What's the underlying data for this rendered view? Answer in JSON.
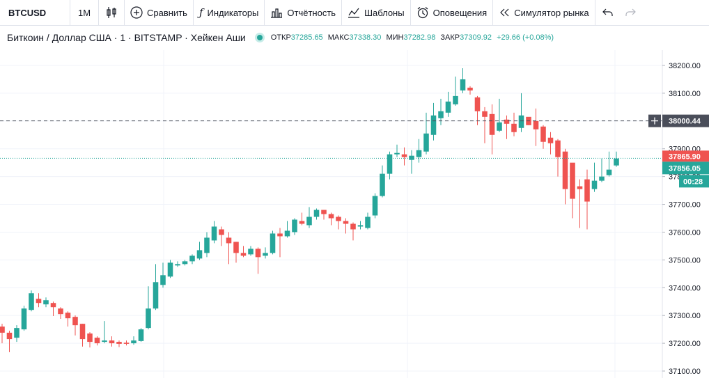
{
  "toolbar": {
    "symbol": "BTCUSD",
    "interval": "1M",
    "compare": "Сравнить",
    "indicators": "Индикаторы",
    "report": "Отчётность",
    "templates": "Шаблоны",
    "alerts": "Оповещения",
    "simulator": "Симулятор рынка"
  },
  "legend": {
    "title": "Биткоин / Доллар США · 1 · BITSTAMP · Хейкен Аши",
    "open_label": "ОТКР",
    "open": "37285.65",
    "high_label": "МАКС",
    "high": "37338.30",
    "low_label": "МИН",
    "low": "37282.98",
    "close_label": "ЗАКР",
    "close": "37309.92",
    "change": "+29.66 (+0.08%)"
  },
  "colors": {
    "up": "#26a69a",
    "down": "#ef5350",
    "crosshair_tag": "#4a4e5a"
  },
  "price_tags": {
    "crosshair": "38000.44",
    "last_red": "37865.90",
    "last_green": "37856.05",
    "countdown": "00:28"
  },
  "chart_data": {
    "type": "candlestick",
    "y_ticks": [
      "38200.00",
      "38100.00",
      "38000.00",
      "37900.00",
      "37800.00",
      "37700.00",
      "37600.00",
      "37500.00",
      "37400.00",
      "37300.00",
      "37200.00",
      "37100.00"
    ],
    "ylim": [
      37090,
      38220
    ],
    "crosshair_price": 38000.44,
    "last_price": 37865.9,
    "candles": [
      [
        37260,
        37238,
        37270,
        37200
      ],
      [
        37238,
        37215,
        37245,
        37168
      ],
      [
        37220,
        37255,
        37265,
        37205
      ],
      [
        37250,
        37325,
        37335,
        37245
      ],
      [
        37320,
        37380,
        37390,
        37315
      ],
      [
        37360,
        37345,
        37380,
        37330
      ],
      [
        37340,
        37355,
        37365,
        37330
      ],
      [
        37345,
        37330,
        37350,
        37298
      ],
      [
        37325,
        37305,
        37330,
        37288
      ],
      [
        37310,
        37290,
        37315,
        37260
      ],
      [
        37295,
        37265,
        37300,
        37228
      ],
      [
        37270,
        37215,
        37270,
        37188
      ],
      [
        37235,
        37205,
        37240,
        37185
      ],
      [
        37220,
        37200,
        37225,
        37192
      ],
      [
        37205,
        37210,
        37280,
        37200
      ],
      [
        37210,
        37200,
        37225,
        37188
      ],
      [
        37205,
        37198,
        37210,
        37186
      ],
      [
        37202,
        37198,
        37210,
        37192
      ],
      [
        37200,
        37210,
        37225,
        37195
      ],
      [
        37208,
        37250,
        37255,
        37205
      ],
      [
        37255,
        37325,
        37405,
        37250
      ],
      [
        37325,
        37420,
        37485,
        37320
      ],
      [
        37410,
        37445,
        37490,
        37400
      ],
      [
        37440,
        37490,
        37500,
        37435
      ],
      [
        37480,
        37485,
        37495,
        37475
      ],
      [
        37485,
        37495,
        37500,
        37480
      ],
      [
        37495,
        37515,
        37520,
        37485
      ],
      [
        37505,
        37535,
        37565,
        37500
      ],
      [
        37525,
        37580,
        37600,
        37510
      ],
      [
        37570,
        37620,
        37640,
        37560
      ],
      [
        37610,
        37590,
        37620,
        37550
      ],
      [
        37580,
        37560,
        37600,
        37485
      ],
      [
        37565,
        37525,
        37565,
        37490
      ],
      [
        37525,
        37515,
        37550,
        37510
      ],
      [
        37520,
        37540,
        37550,
        37515
      ],
      [
        37540,
        37510,
        37545,
        37450
      ],
      [
        37515,
        37525,
        37545,
        37505
      ],
      [
        37525,
        37595,
        37605,
        37520
      ],
      [
        37595,
        37585,
        37615,
        37510
      ],
      [
        37585,
        37605,
        37640,
        37580
      ],
      [
        37600,
        37645,
        37650,
        37590
      ],
      [
        37640,
        37630,
        37670,
        37625
      ],
      [
        37625,
        37655,
        37690,
        37615
      ],
      [
        37655,
        37680,
        37685,
        37645
      ],
      [
        37680,
        37665,
        37680,
        37645
      ],
      [
        37665,
        37650,
        37670,
        37625
      ],
      [
        37655,
        37640,
        37660,
        37610
      ],
      [
        37640,
        37630,
        37650,
        37595
      ],
      [
        37630,
        37610,
        37635,
        37570
      ],
      [
        37620,
        37625,
        37640,
        37610
      ],
      [
        37615,
        37655,
        37670,
        37610
      ],
      [
        37660,
        37730,
        37740,
        37650
      ],
      [
        37730,
        37810,
        37840,
        37725
      ],
      [
        37810,
        37880,
        37890,
        37790
      ],
      [
        37880,
        37885,
        37915,
        37870
      ],
      [
        37880,
        37870,
        37905,
        37840
      ],
      [
        37860,
        37875,
        37895,
        37810
      ],
      [
        37870,
        37895,
        37935,
        37850
      ],
      [
        37890,
        37955,
        38030,
        37880
      ],
      [
        37950,
        38020,
        38065,
        37930
      ],
      [
        38010,
        38035,
        38080,
        37985
      ],
      [
        38030,
        38070,
        38105,
        38015
      ],
      [
        38060,
        38090,
        38160,
        38055
      ],
      [
        38110,
        38150,
        38190,
        38100
      ],
      [
        38120,
        38110,
        38125,
        38095
      ],
      [
        38085,
        38035,
        38090,
        37985
      ],
      [
        38035,
        38015,
        38050,
        37920
      ],
      [
        38025,
        37950,
        38060,
        37880
      ],
      [
        37965,
        37995,
        38080,
        37960
      ],
      [
        38005,
        37990,
        38020,
        37935
      ],
      [
        37990,
        37960,
        38030,
        37945
      ],
      [
        37975,
        38020,
        38100,
        37960
      ],
      [
        38015,
        37985,
        38010,
        37985
      ],
      [
        38000,
        37970,
        38045,
        37910
      ],
      [
        37980,
        37925,
        37985,
        37900
      ],
      [
        37940,
        37920,
        37960,
        37880
      ],
      [
        37930,
        37870,
        37935,
        37800
      ],
      [
        37890,
        37755,
        37900,
        37700
      ],
      [
        37850,
        37720,
        37845,
        37650
      ],
      [
        37765,
        37755,
        37790,
        37615
      ],
      [
        37790,
        37710,
        37825,
        37610
      ],
      [
        37755,
        37785,
        37850,
        37745
      ],
      [
        37785,
        37800,
        37865,
        37780
      ],
      [
        37805,
        37825,
        37890,
        37800
      ],
      [
        37840,
        37865,
        37890,
        37835
      ]
    ]
  }
}
